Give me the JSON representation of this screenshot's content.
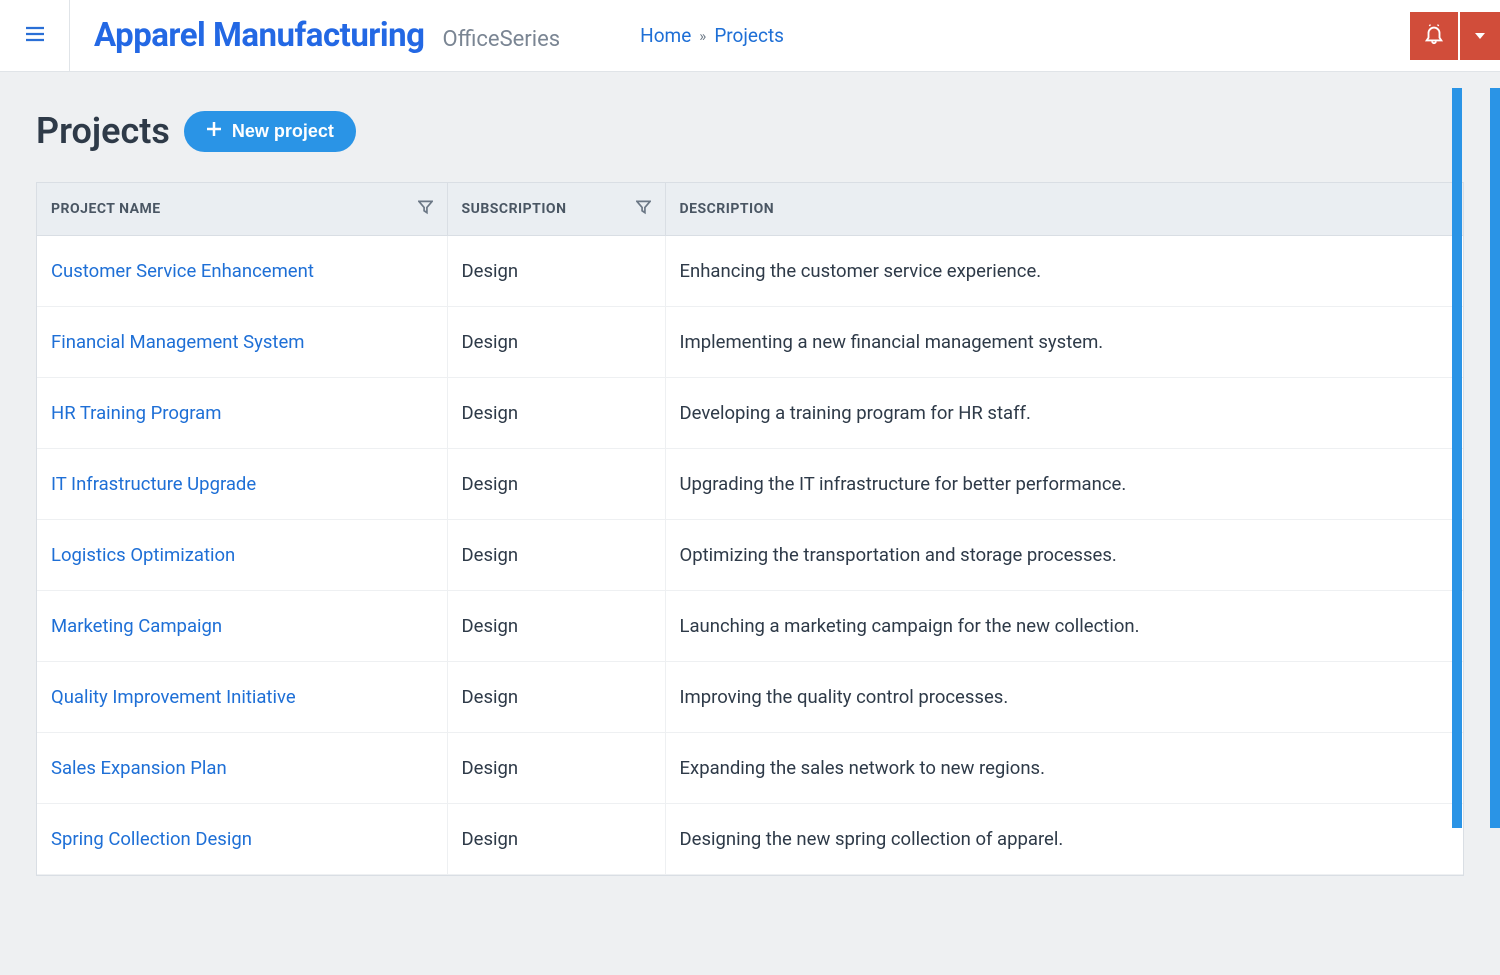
{
  "header": {
    "brand_title": "Apparel Manufacturing",
    "brand_sub": "OfficeSeries",
    "breadcrumb": {
      "home": "Home",
      "sep": "»",
      "current": "Projects"
    }
  },
  "page": {
    "title": "Projects",
    "new_button_label": "New project"
  },
  "table": {
    "columns": {
      "name": "PROJECT NAME",
      "sub": "SUBSCRIPTION",
      "desc": "DESCRIPTION"
    },
    "rows": [
      {
        "name": "Customer Service Enhancement",
        "sub": "Design",
        "desc": "Enhancing the customer service experience."
      },
      {
        "name": "Financial Management System",
        "sub": "Design",
        "desc": "Implementing a new financial management system."
      },
      {
        "name": "HR Training Program",
        "sub": "Design",
        "desc": "Developing a training program for HR staff."
      },
      {
        "name": "IT Infrastructure Upgrade",
        "sub": "Design",
        "desc": "Upgrading the IT infrastructure for better performance."
      },
      {
        "name": "Logistics Optimization",
        "sub": "Design",
        "desc": "Optimizing the transportation and storage processes."
      },
      {
        "name": "Marketing Campaign",
        "sub": "Design",
        "desc": "Launching a marketing campaign for the new collection."
      },
      {
        "name": "Quality Improvement Initiative",
        "sub": "Design",
        "desc": "Improving the quality control processes."
      },
      {
        "name": "Sales Expansion Plan",
        "sub": "Design",
        "desc": "Expanding the sales network to new regions."
      },
      {
        "name": "Spring Collection Design",
        "sub": "Design",
        "desc": "Designing the new spring collection of apparel."
      }
    ]
  },
  "colors": {
    "primary_blue": "#2a94e6",
    "link_blue": "#1e6fd6",
    "brand_blue": "#2368e4",
    "danger_red": "#d14d3a",
    "page_bg": "#eef0f2",
    "text": "#2e3a48",
    "muted": "#7a8593",
    "border": "#d9dee4"
  }
}
